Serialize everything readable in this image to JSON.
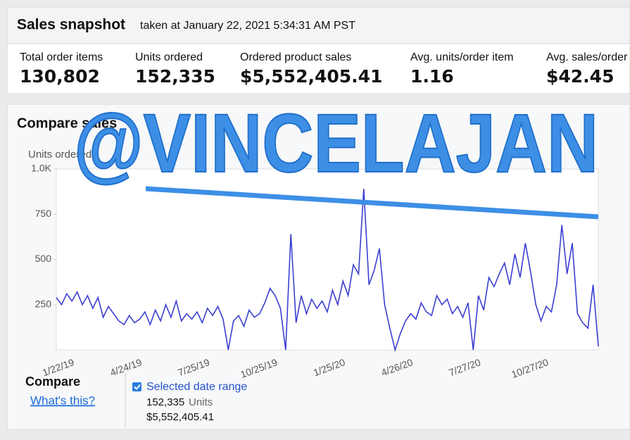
{
  "header": {
    "title": "Sales snapshot",
    "subtitle": "taken at January 22, 2021 5:34:31 AM PST"
  },
  "metrics": [
    {
      "label": "Total order items",
      "value": "130,802"
    },
    {
      "label": "Units ordered",
      "value": "152,335"
    },
    {
      "label": "Ordered product sales",
      "value": "$5,552,405.41"
    },
    {
      "label": "Avg. units/order item",
      "value": "1.16"
    },
    {
      "label": "Avg. sales/order",
      "value": "$42.45"
    }
  ],
  "watermark": "@VINCELAJAN",
  "chart_data": {
    "type": "line",
    "title": "Compare sales",
    "y_label": "Units ordered",
    "categories": [
      "1/22/19",
      null,
      null,
      null,
      null,
      null,
      null,
      null,
      null,
      null,
      null,
      null,
      null,
      "4/24/19",
      null,
      null,
      null,
      null,
      null,
      null,
      null,
      null,
      null,
      null,
      null,
      null,
      "7/25/19",
      null,
      null,
      null,
      null,
      null,
      null,
      null,
      null,
      null,
      null,
      null,
      null,
      "10/25/19",
      null,
      null,
      null,
      null,
      null,
      null,
      null,
      null,
      null,
      null,
      null,
      null,
      "1/25/20",
      null,
      null,
      null,
      null,
      null,
      null,
      null,
      null,
      null,
      null,
      null,
      null,
      "4/26/20",
      null,
      null,
      null,
      null,
      null,
      null,
      null,
      null,
      null,
      null,
      null,
      null,
      "7/27/20",
      null,
      null,
      null,
      null,
      null,
      null,
      null,
      null,
      null,
      null,
      null,
      null,
      "10/27/20",
      null,
      null,
      null,
      null,
      null,
      null,
      null,
      null,
      null,
      null,
      null,
      null,
      null
    ],
    "series": [
      {
        "name": "Selected date range",
        "color": "#3b3fd0",
        "values": [
          290,
          250,
          310,
          270,
          320,
          250,
          300,
          230,
          290,
          180,
          240,
          200,
          160,
          140,
          190,
          150,
          170,
          210,
          140,
          220,
          160,
          250,
          180,
          270,
          160,
          200,
          170,
          210,
          150,
          230,
          190,
          240,
          170,
          0,
          160,
          190,
          130,
          220,
          180,
          200,
          260,
          340,
          300,
          230,
          0,
          640,
          150,
          300,
          200,
          280,
          230,
          270,
          210,
          330,
          250,
          380,
          300,
          470,
          420,
          890,
          360,
          440,
          560,
          250,
          120,
          0,
          90,
          160,
          200,
          170,
          260,
          210,
          190,
          300,
          250,
          280,
          200,
          240,
          180,
          260,
          0,
          300,
          220,
          400,
          350,
          420,
          480,
          360,
          530,
          400,
          590,
          430,
          250,
          160,
          240,
          210,
          360,
          690,
          420,
          590,
          200,
          150,
          120,
          360,
          20
        ]
      }
    ],
    "ylim": [
      0,
      1000
    ],
    "yticks": [
      250,
      500,
      750,
      {
        "value": 1000,
        "label": "1.0K"
      }
    ],
    "grid": false
  },
  "compare": {
    "title": "Compare",
    "link": "What's this?",
    "range_label": "Selected date range",
    "units_value": "152,335",
    "units_label": "Units",
    "sales_value": "$5,552,405.41"
  }
}
